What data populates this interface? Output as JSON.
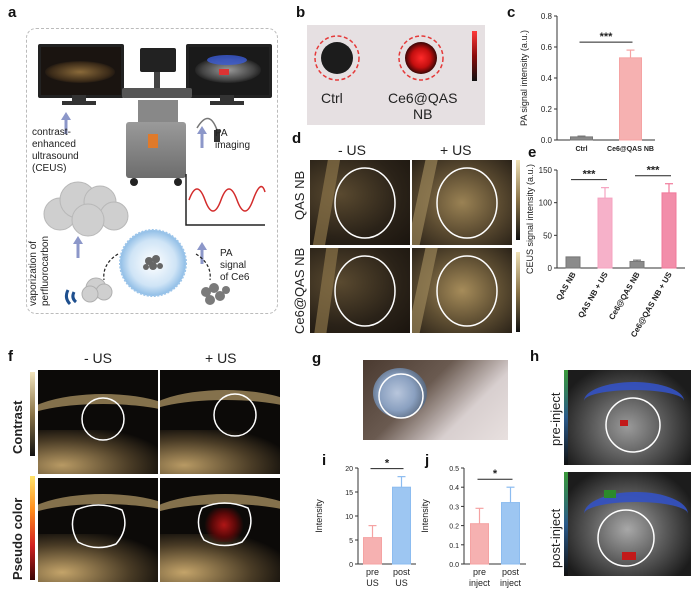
{
  "panels": {
    "a": {
      "label": "a",
      "ceus": "contrast-\nenhanced\nultrasound\n(CEUS)",
      "pa_imaging": "PA\nimaging",
      "vaporization": "vaporization of\nperfluorocarbon",
      "pa_signal": "PA\nsignal\nof Ce6"
    },
    "b": {
      "label": "b",
      "ctrl": "Ctrl",
      "sample": "Ce6@QAS\nNB"
    },
    "c": {
      "label": "c"
    },
    "d": {
      "label": "d",
      "col_minus": "- US",
      "col_plus": "+ US",
      "row1": "QAS NB",
      "row2": "Ce6@QAS NB"
    },
    "e": {
      "label": "e"
    },
    "f": {
      "label": "f",
      "col_minus": "- US",
      "col_plus": "+ US",
      "row1": "Contrast",
      "row2": "Pseudo color"
    },
    "g": {
      "label": "g"
    },
    "h": {
      "label": "h",
      "row1": "pre-inject",
      "row2": "post-inject"
    },
    "i": {
      "label": "i"
    },
    "j": {
      "label": "j"
    }
  },
  "colors": {
    "red_ring": "#e53a3a",
    "bar_pink": "#f5a3a3",
    "bar_blue": "#8cbcf0",
    "bar_gray": "#777777",
    "bar_magenta": "#f07a9b"
  },
  "chart_data": [
    {
      "panel": "c",
      "type": "bar",
      "categories": [
        "Ctrl",
        "Ce6@QAS NB"
      ],
      "values": [
        0.02,
        0.53
      ],
      "errors": [
        0.005,
        0.05
      ],
      "ylabel": "PA signal intensity (a.u.)",
      "ylim": [
        0,
        0.8
      ],
      "yticks": [
        "0.0",
        "0.2",
        "0.4",
        "0.6",
        "0.8"
      ],
      "significance": "***"
    },
    {
      "panel": "e",
      "type": "bar",
      "categories": [
        "QAS NB",
        "QAS NB + US",
        "Ce6@QAS NB",
        "Ce6@QAS NB + US"
      ],
      "values": [
        17,
        107,
        10,
        115
      ],
      "errors": [
        0,
        16,
        2,
        14
      ],
      "ylabel": "CEUS signal intensity (a.u.)",
      "ylim": [
        0,
        150
      ],
      "yticks": [
        "0",
        "50",
        "100",
        "150"
      ],
      "significance": [
        "***",
        "***"
      ]
    },
    {
      "panel": "i",
      "type": "bar",
      "categories": [
        "pre\nUS",
        "post\nUS"
      ],
      "values": [
        5.5,
        16
      ],
      "errors": [
        2.5,
        2.2
      ],
      "ylabel": "Intensity",
      "ylim": [
        0,
        20
      ],
      "yticks": [
        "0",
        "5",
        "10",
        "15",
        "20"
      ],
      "significance": "*"
    },
    {
      "panel": "j",
      "type": "bar",
      "categories": [
        "pre\ninject",
        "post\ninject"
      ],
      "values": [
        0.21,
        0.32
      ],
      "errors": [
        0.08,
        0.08
      ],
      "ylabel": "Intensity",
      "ylim": [
        0,
        0.5
      ],
      "yticks": [
        "0.0",
        "0.1",
        "0.2",
        "0.3",
        "0.4",
        "0.5"
      ],
      "significance": "*"
    }
  ]
}
